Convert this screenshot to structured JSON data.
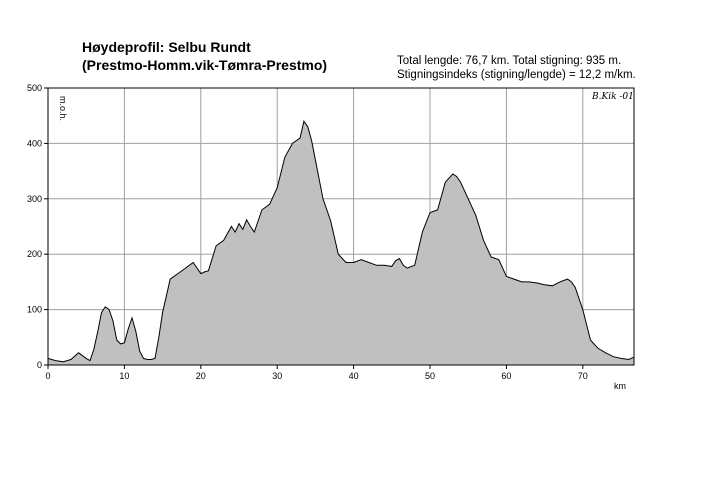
{
  "header": {
    "title_line1": "Høydeprofil:  Selbu Rundt",
    "title_line2": "(Prestmo-Homm.vik-Tømra-Prestmo)",
    "stats_line1": "Total lengde: 76,7 km. Total stigning: 935 m.",
    "stats_line2": "Stigningsindeks (stigning/lengde) = 12,2 m/km.",
    "signature": "B.Kik -01"
  },
  "chart_data": {
    "type": "area",
    "title": "Høydeprofil:  Selbu Rundt",
    "xlabel": "km",
    "ylabel": "m.o.h.",
    "xlim": [
      0,
      76.7
    ],
    "ylim": [
      0,
      500
    ],
    "xticks": [
      "0",
      "10",
      "20",
      "30",
      "40",
      "50",
      "60",
      "70"
    ],
    "yticks": [
      "0",
      "100",
      "200",
      "300",
      "400",
      "500"
    ],
    "grid": true,
    "fill_color": "#c0c0c0",
    "line_color": "#000000",
    "x": [
      0,
      1,
      2,
      3,
      4,
      5,
      5.5,
      6,
      6.5,
      7,
      7.5,
      8,
      8.5,
      9,
      9.5,
      10,
      10.5,
      11,
      11.5,
      12,
      12.5,
      13,
      13.5,
      14,
      14.5,
      15,
      16,
      17,
      18,
      19,
      20,
      20.5,
      21,
      22,
      23,
      24,
      24.5,
      25,
      25.5,
      26,
      26.5,
      27,
      27.5,
      28,
      29,
      30,
      31,
      32,
      32.5,
      33,
      33.5,
      34,
      34.5,
      35,
      36,
      37,
      38,
      39,
      40,
      41,
      42,
      43,
      44,
      45,
      45.5,
      46,
      46.5,
      47,
      48,
      49,
      50,
      51,
      52,
      53,
      53.5,
      54,
      55,
      56,
      57,
      58,
      59,
      60,
      61,
      62,
      63,
      64,
      65,
      66,
      67,
      68,
      68.5,
      69,
      70,
      71,
      72,
      73,
      74,
      75,
      76,
      76.7
    ],
    "values": [
      12,
      8,
      6,
      10,
      22,
      12,
      8,
      28,
      60,
      95,
      105,
      100,
      80,
      45,
      38,
      40,
      65,
      85,
      60,
      25,
      12,
      10,
      10,
      12,
      50,
      95,
      155,
      165,
      175,
      185,
      165,
      168,
      170,
      215,
      225,
      250,
      240,
      255,
      245,
      262,
      250,
      240,
      260,
      280,
      290,
      320,
      375,
      400,
      405,
      410,
      440,
      430,
      405,
      370,
      300,
      260,
      200,
      185,
      185,
      190,
      185,
      180,
      180,
      178,
      188,
      192,
      180,
      175,
      180,
      240,
      275,
      280,
      330,
      345,
      340,
      330,
      300,
      270,
      225,
      195,
      190,
      160,
      155,
      150,
      150,
      148,
      145,
      143,
      150,
      155,
      150,
      140,
      100,
      45,
      30,
      22,
      15,
      12,
      10,
      14
    ]
  }
}
